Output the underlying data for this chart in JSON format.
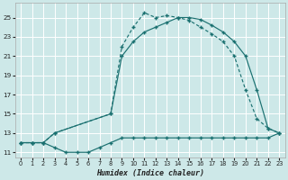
{
  "xlabel": "Humidex (Indice chaleur)",
  "bg_color": "#cde8e8",
  "grid_color": "#ffffff",
  "line_color": "#1a7070",
  "xlim": [
    -0.5,
    23.5
  ],
  "ylim": [
    10.5,
    26.5
  ],
  "xticks": [
    0,
    1,
    2,
    3,
    4,
    5,
    6,
    7,
    8,
    9,
    10,
    11,
    12,
    13,
    14,
    15,
    16,
    17,
    18,
    19,
    20,
    21,
    22,
    23
  ],
  "yticks": [
    11,
    13,
    15,
    17,
    19,
    21,
    23,
    25
  ],
  "series1_x": [
    0,
    1,
    2,
    3,
    4,
    5,
    6,
    7,
    8,
    9,
    10,
    11,
    12,
    13,
    14,
    15,
    16,
    17,
    18,
    19,
    20,
    21,
    22,
    23
  ],
  "series1_y": [
    12,
    12,
    12,
    11.5,
    11,
    11,
    11,
    11.5,
    12,
    12.5,
    12.5,
    12.5,
    12.5,
    12.5,
    12.5,
    12.5,
    12.5,
    12.5,
    12.5,
    12.5,
    12.5,
    12.5,
    12.5,
    13
  ],
  "series2_x": [
    0,
    1,
    2,
    3,
    8,
    9,
    10,
    11,
    12,
    13,
    14,
    15,
    16,
    17,
    18,
    19,
    20,
    21,
    22,
    23
  ],
  "series2_y": [
    12,
    12,
    12,
    13,
    15,
    22,
    24,
    25.5,
    25,
    25.2,
    25,
    24.7,
    24,
    23.3,
    22.5,
    21,
    17.5,
    14.5,
    13.5,
    13
  ],
  "series3_x": [
    0,
    1,
    2,
    3,
    8,
    9,
    10,
    11,
    12,
    13,
    14,
    15,
    16,
    17,
    18,
    19,
    20,
    21,
    22,
    23
  ],
  "series3_y": [
    12,
    12,
    12,
    13,
    15,
    21,
    22.5,
    23.5,
    24,
    24.5,
    25,
    25,
    24.8,
    24.2,
    23.5,
    22.5,
    21,
    17.5,
    13.5,
    13
  ]
}
